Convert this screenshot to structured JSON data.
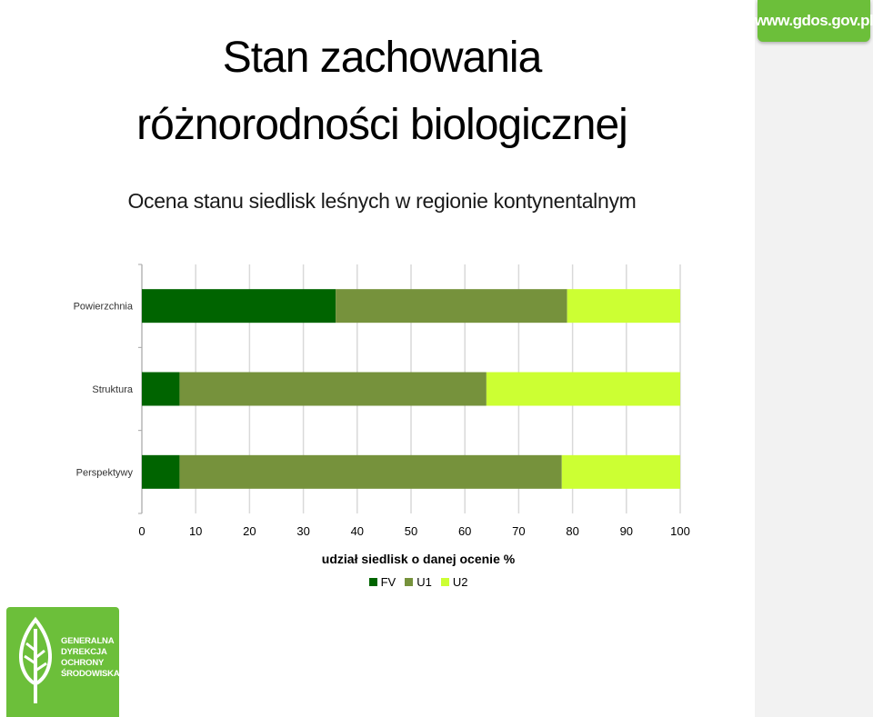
{
  "header": {
    "url_badge": "www.gdos.gov.pl",
    "title_line1": "Stan zachowania",
    "title_line2": "różnorodności biologicznej",
    "subtitle": "Ocena stanu siedlisk leśnych w regionie kontynentalnym"
  },
  "logo": {
    "lines": [
      "GENERALNA",
      "DYREKCJA",
      "OCHRONY",
      "ŚRODOWISKA"
    ]
  },
  "chart_data": {
    "type": "bar",
    "orientation": "horizontal",
    "stacked": true,
    "categories": [
      "Powierzchnia",
      "Struktura",
      "Perspektywy"
    ],
    "series": [
      {
        "name": "FV",
        "color": "#006400",
        "values": [
          36,
          7,
          7
        ]
      },
      {
        "name": "U1",
        "color": "#76923c",
        "values": [
          43,
          57,
          71
        ]
      },
      {
        "name": "U2",
        "color": "#ccff33",
        "values": [
          21,
          36,
          22
        ]
      }
    ],
    "xlabel": "udział siedlisk o danej ocenie %",
    "xlim": [
      0,
      100
    ],
    "xticks": [
      "0",
      "10",
      "20",
      "30",
      "40",
      "50",
      "60",
      "70",
      "80",
      "90",
      "100"
    ],
    "grid": true,
    "legend": "bottom"
  }
}
